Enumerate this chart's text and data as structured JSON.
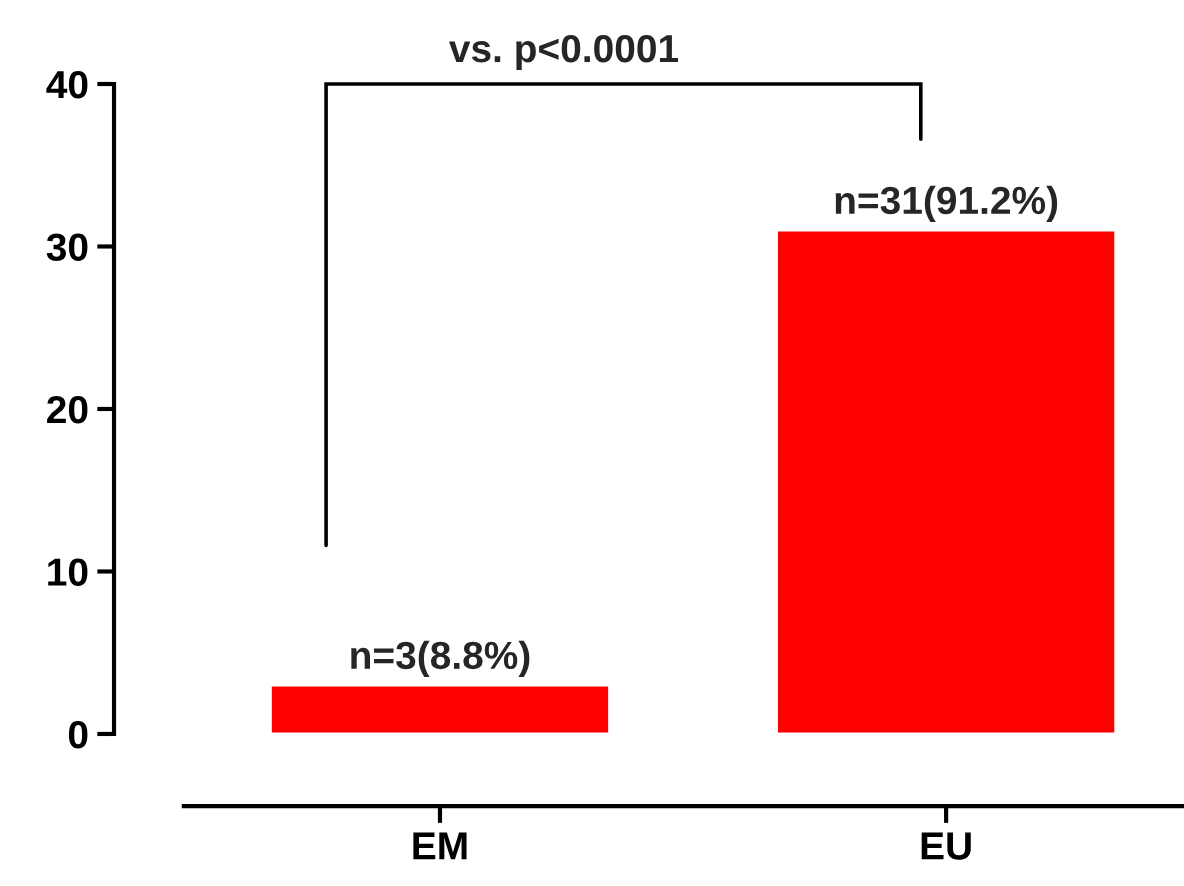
{
  "chart_data": {
    "type": "bar",
    "categories": [
      "EM",
      "EU"
    ],
    "values": [
      3,
      31
    ],
    "color": "#ff0000",
    "ylim": [
      0,
      40
    ],
    "yticks": [
      0,
      10,
      20,
      30,
      40
    ],
    "value_labels": [
      "n=3(8.8%)",
      "n=31(91.2%)"
    ],
    "annotations": [
      "vs. p<0.0001"
    ]
  }
}
